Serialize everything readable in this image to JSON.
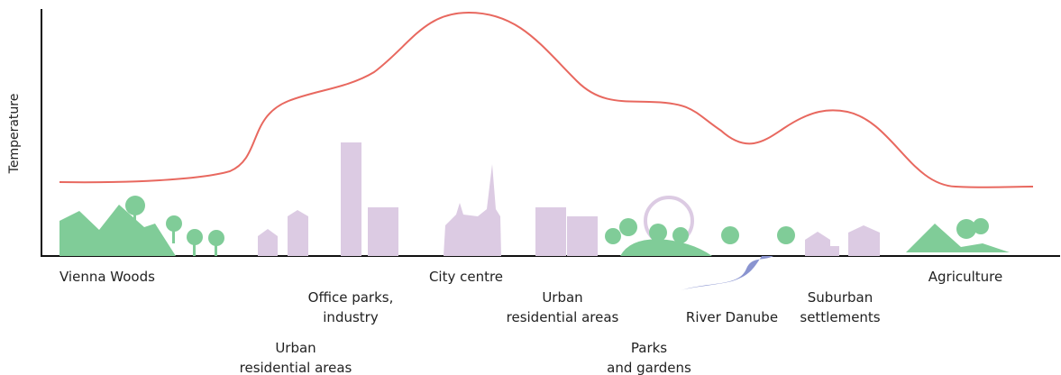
{
  "y_axis_label": "Temperature",
  "labels": [
    [
      "Vienna Woods"
    ],
    [
      "Urban",
      "residential areas"
    ],
    [
      "Office parks,",
      "industry"
    ],
    [
      "City centre"
    ],
    [
      "Urban",
      "residential areas"
    ],
    [
      "Parks",
      "and gardens"
    ],
    [
      "River Danube"
    ],
    [
      "Suburban",
      "settlements"
    ],
    [
      "Agriculture"
    ]
  ]
}
